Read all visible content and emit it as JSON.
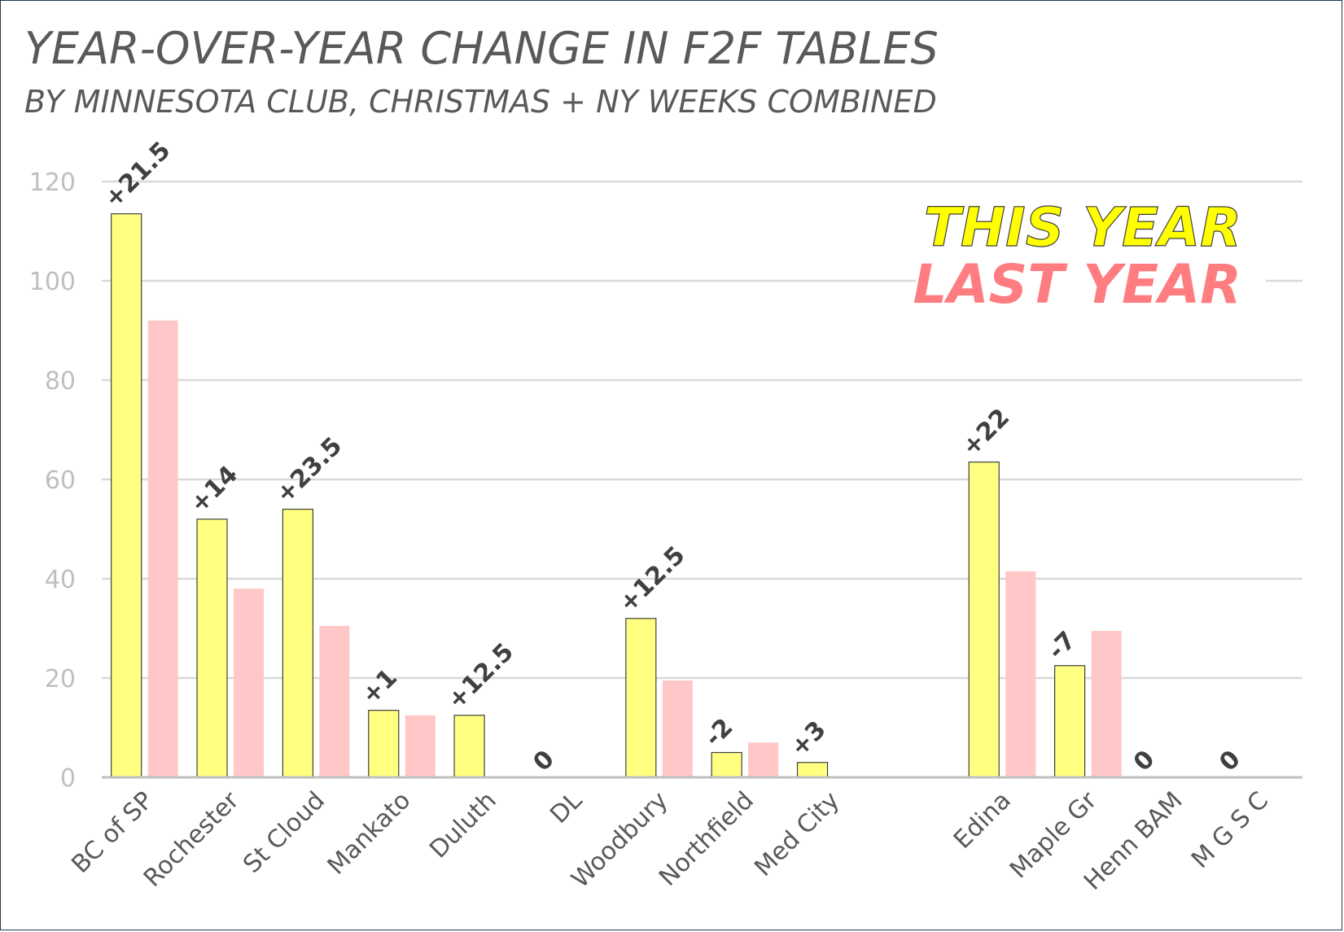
{
  "chart_data": {
    "type": "bar",
    "title": "YEAR-OVER-YEAR CHANGE IN F2F TABLES",
    "subtitle": "BY MINNESOTA CLUB, CHRISTMAS + NY WEEKS COMBINED",
    "categories": [
      "BC of SP",
      "Rochester",
      "St Cloud",
      "Mankato",
      "Duluth",
      "DL",
      "Woodbury",
      "Northfield",
      "Med City",
      "",
      "Edina",
      "Maple Gr",
      "Henn BAM",
      "M G S C"
    ],
    "series": [
      {
        "name": "THIS YEAR",
        "values": [
          113.5,
          52,
          54,
          13.5,
          12.5,
          0,
          32,
          5,
          3,
          null,
          63.5,
          22.5,
          0,
          0
        ],
        "color": "#ffff80",
        "stroke": "#404040"
      },
      {
        "name": "LAST YEAR",
        "values": [
          92,
          38,
          30.5,
          12.5,
          0,
          0,
          19.5,
          7,
          0,
          null,
          41.5,
          29.5,
          0,
          0
        ],
        "color": "#ffc7c7"
      }
    ],
    "change_labels": [
      "+21.5",
      "+14",
      "+23.5",
      "+1",
      "+12.5",
      "0",
      "+12.5",
      "-2",
      "+3",
      "",
      "+22",
      "-7",
      "0",
      "0"
    ],
    "ylim": [
      0,
      120
    ],
    "yticks": [
      0,
      20,
      40,
      60,
      80,
      100,
      120
    ],
    "grid": true,
    "legend_position": "top-right",
    "legend_colors": {
      "this_year": "#ffff00",
      "last_year": "#ff7c80"
    }
  }
}
